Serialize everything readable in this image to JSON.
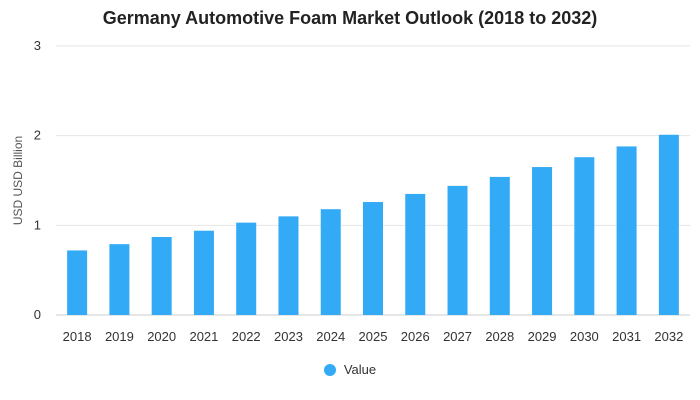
{
  "chart_data": {
    "type": "bar",
    "title": "Germany Automotive Foam Market Outlook (2018 to 2032)",
    "xlabel": "",
    "ylabel": "USD USD Billion",
    "categories": [
      "2018",
      "2019",
      "2020",
      "2021",
      "2022",
      "2023",
      "2024",
      "2025",
      "2026",
      "2027",
      "2028",
      "2029",
      "2030",
      "2031",
      "2032"
    ],
    "series": [
      {
        "name": "Value",
        "color": "#33aaf5",
        "values": [
          0.72,
          0.79,
          0.87,
          0.94,
          1.03,
          1.1,
          1.18,
          1.26,
          1.35,
          1.44,
          1.54,
          1.65,
          1.76,
          1.88,
          2.01
        ]
      }
    ],
    "ylim": [
      0,
      3
    ],
    "yticks": [
      0,
      1,
      2,
      3
    ],
    "grid": true,
    "legend_position": "bottom-center"
  }
}
